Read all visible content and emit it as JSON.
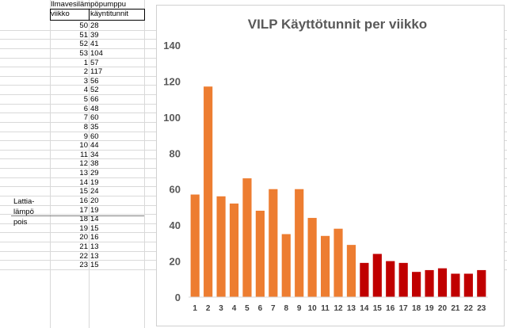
{
  "sheet": {
    "title": "Ilmavesilämpöpumppu",
    "col_a_header": "viikko",
    "col_b_header": "käyntitunnit",
    "note": [
      "Lattia-",
      "lämpö",
      "pois"
    ],
    "rows": [
      {
        "week": "50",
        "hours": "28"
      },
      {
        "week": "51",
        "hours": "39"
      },
      {
        "week": "52",
        "hours": "41"
      },
      {
        "week": "53",
        "hours": "104"
      },
      {
        "week": "1",
        "hours": "57"
      },
      {
        "week": "2",
        "hours": "117"
      },
      {
        "week": "3",
        "hours": "56"
      },
      {
        "week": "4",
        "hours": "52"
      },
      {
        "week": "5",
        "hours": "66"
      },
      {
        "week": "6",
        "hours": "48"
      },
      {
        "week": "7",
        "hours": "60"
      },
      {
        "week": "8",
        "hours": "35"
      },
      {
        "week": "9",
        "hours": "60"
      },
      {
        "week": "10",
        "hours": "44"
      },
      {
        "week": "11",
        "hours": "34"
      },
      {
        "week": "12",
        "hours": "38"
      },
      {
        "week": "13",
        "hours": "29"
      },
      {
        "week": "14",
        "hours": "19"
      },
      {
        "week": "15",
        "hours": "24"
      },
      {
        "week": "16",
        "hours": "20"
      },
      {
        "week": "17",
        "hours": "19"
      },
      {
        "week": "18",
        "hours": "14"
      },
      {
        "week": "19",
        "hours": "15"
      },
      {
        "week": "20",
        "hours": "16"
      },
      {
        "week": "21",
        "hours": "13"
      },
      {
        "week": "22",
        "hours": "13"
      },
      {
        "week": "23",
        "hours": "15"
      }
    ]
  },
  "chart_data": {
    "type": "bar",
    "title": "VILP Käyttötunnit per viikko",
    "categories": [
      "1",
      "2",
      "3",
      "4",
      "5",
      "6",
      "7",
      "8",
      "9",
      "10",
      "11",
      "12",
      "13",
      "14",
      "15",
      "16",
      "17",
      "18",
      "19",
      "20",
      "21",
      "22",
      "23"
    ],
    "values": [
      57,
      117,
      56,
      52,
      66,
      48,
      60,
      35,
      60,
      44,
      34,
      38,
      29,
      19,
      24,
      20,
      19,
      14,
      15,
      16,
      13,
      13,
      15
    ],
    "ylim": [
      0,
      140
    ],
    "yticks": [
      "0",
      "20",
      "40",
      "60",
      "80",
      "100",
      "120",
      "140"
    ],
    "grid": false,
    "colors": {
      "before": "#ed7d31",
      "after": "#c00000"
    },
    "color_change_index": 13
  }
}
